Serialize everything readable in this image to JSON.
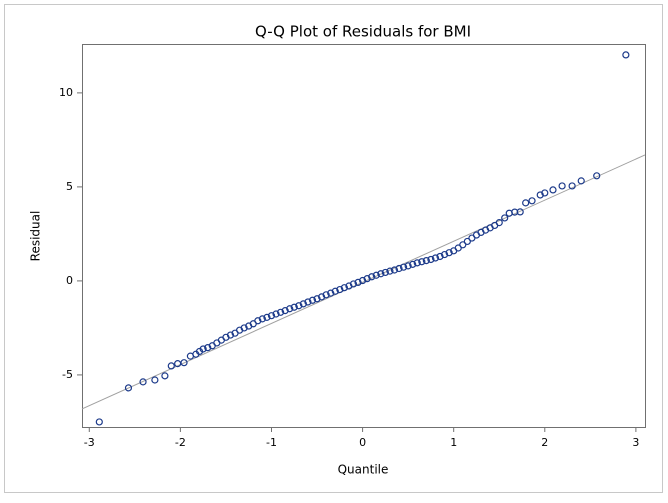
{
  "chart_data": {
    "type": "scatter",
    "title": "Q-Q Plot of Residuals for BMI",
    "x_label": "Quantile",
    "y_label": "Residual",
    "x": [
      -2.89,
      -2.57,
      -2.41,
      -2.28,
      -2.17,
      -2.1,
      -2.03,
      -1.96,
      -1.89,
      -1.83,
      -1.79,
      -1.75,
      -1.7,
      -1.65,
      -1.6,
      -1.55,
      -1.5,
      -1.45,
      -1.4,
      -1.35,
      -1.3,
      -1.25,
      -1.2,
      -1.15,
      -1.1,
      -1.05,
      -1.0,
      -0.95,
      -0.9,
      -0.85,
      -0.8,
      -0.75,
      -0.7,
      -0.65,
      -0.6,
      -0.55,
      -0.5,
      -0.45,
      -0.4,
      -0.35,
      -0.3,
      -0.25,
      -0.2,
      -0.15,
      -0.1,
      -0.05,
      0.0,
      0.05,
      0.1,
      0.15,
      0.2,
      0.25,
      0.3,
      0.35,
      0.4,
      0.45,
      0.5,
      0.55,
      0.6,
      0.65,
      0.7,
      0.75,
      0.8,
      0.85,
      0.9,
      0.95,
      1.0,
      1.05,
      1.1,
      1.15,
      1.2,
      1.25,
      1.3,
      1.35,
      1.4,
      1.45,
      1.5,
      1.56,
      1.61,
      1.67,
      1.73,
      1.79,
      1.86,
      1.95,
      2.0,
      2.09,
      2.19,
      2.3,
      2.4,
      2.57,
      2.89
    ],
    "values": [
      -7.5,
      -5.69,
      -5.37,
      -5.27,
      -5.05,
      -4.52,
      -4.4,
      -4.35,
      -4.0,
      -3.9,
      -3.75,
      -3.62,
      -3.55,
      -3.45,
      -3.3,
      -3.15,
      -3.0,
      -2.88,
      -2.78,
      -2.62,
      -2.5,
      -2.4,
      -2.28,
      -2.12,
      -2.02,
      -1.94,
      -1.85,
      -1.76,
      -1.67,
      -1.58,
      -1.48,
      -1.4,
      -1.32,
      -1.22,
      -1.12,
      -1.03,
      -0.95,
      -0.85,
      -0.74,
      -0.65,
      -0.55,
      -0.46,
      -0.36,
      -0.27,
      -0.16,
      -0.08,
      0.02,
      0.12,
      0.22,
      0.3,
      0.38,
      0.45,
      0.52,
      0.58,
      0.66,
      0.73,
      0.8,
      0.88,
      0.96,
      1.02,
      1.08,
      1.14,
      1.22,
      1.3,
      1.4,
      1.5,
      1.6,
      1.75,
      1.92,
      2.1,
      2.28,
      2.44,
      2.58,
      2.7,
      2.82,
      2.95,
      3.1,
      3.35,
      3.6,
      3.66,
      3.67,
      4.15,
      4.26,
      4.57,
      4.68,
      4.84,
      5.05,
      5.05,
      5.32,
      5.59,
      12.02
    ],
    "color": "#1c3a8a",
    "reference_line": {
      "x": [
        -3.08,
        3.1
      ],
      "y": [
        -6.81,
        6.7
      ],
      "color": "#a0a0a0"
    },
    "xlim": [
      -3.08,
      3.1
    ],
    "ylim": [
      -7.77,
      12.6
    ],
    "xticks": [
      -3,
      -2,
      -1,
      0,
      1,
      2,
      3
    ],
    "yticks": [
      -5,
      0,
      5,
      10
    ]
  }
}
